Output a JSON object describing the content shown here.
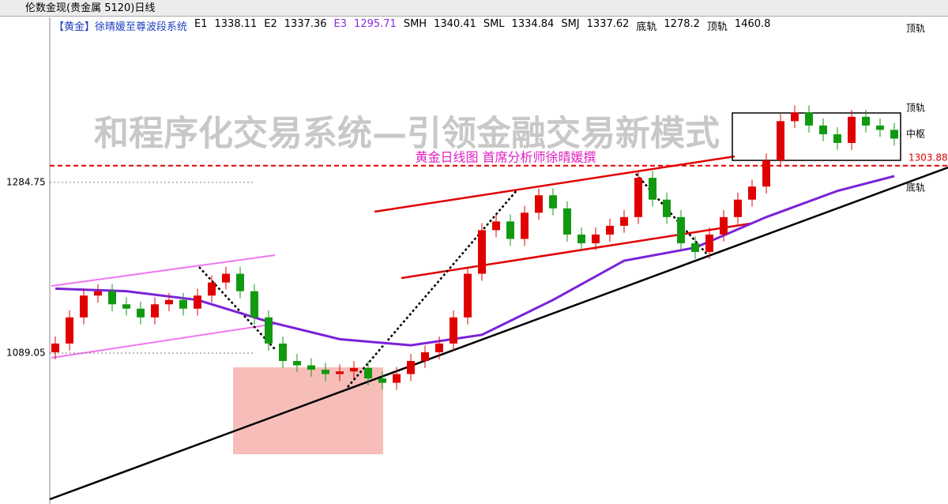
{
  "window_title": "伦数金现(贵金属 5120)日线",
  "chart_data": {
    "type": "candlestick",
    "title": "【黄金】徐晴媛至尊波段系统",
    "indicators": [
      {
        "name": "E1",
        "value": 1338.11,
        "color": "#000000"
      },
      {
        "name": "E2",
        "value": 1337.36,
        "color": "#000000"
      },
      {
        "name": "E3",
        "value": 1295.71,
        "color": "#8a2be2"
      },
      {
        "name": "SMH",
        "value": 1340.41,
        "color": "#000000"
      },
      {
        "name": "SML",
        "value": 1334.84,
        "color": "#000000"
      },
      {
        "name": "SMJ",
        "value": 1337.62,
        "color": "#000000"
      },
      {
        "name": "底轨",
        "value": 1278.2,
        "color": "#000000"
      },
      {
        "name": "顶轨",
        "value": 1460.8,
        "color": "#000000"
      }
    ],
    "watermark": "和程序化交易系统—引领金融交易新模式",
    "subtitle": "黄金日线图  首席分析师徐晴媛撰",
    "right_labels": [
      {
        "label": "顶轨",
        "value": 1460.8
      },
      {
        "label": "顶轨",
        "value": 1370
      },
      {
        "label": "中枢",
        "value": 1340
      },
      {
        "label": "底轨",
        "value": 1278.2
      }
    ],
    "reference_line": {
      "value": 1303.88,
      "color": "#e00000"
    },
    "ylim": [
      916,
      1474
    ],
    "yticks": [
      1089.05,
      1284.75
    ],
    "up_color": "#e00000",
    "down_color": "#119911",
    "open": [
      1090,
      1100,
      1130,
      1155,
      1160,
      1145,
      1140,
      1130,
      1145,
      1150,
      1140,
      1155,
      1170,
      1180,
      1160,
      1130,
      1100,
      1080,
      1075,
      1070,
      1065,
      1068,
      1072,
      1060,
      1055,
      1065,
      1080,
      1090,
      1100,
      1130,
      1180,
      1230,
      1240,
      1220,
      1250,
      1270,
      1255,
      1225,
      1215,
      1225,
      1235,
      1245,
      1290,
      1265,
      1245,
      1215,
      1205,
      1225,
      1245,
      1265,
      1280,
      1310,
      1355,
      1365,
      1350,
      1340,
      1330,
      1360,
      1350,
      1345
    ],
    "high": [
      1108,
      1138,
      1163,
      1168,
      1168,
      1153,
      1148,
      1153,
      1158,
      1158,
      1163,
      1178,
      1188,
      1188,
      1168,
      1138,
      1108,
      1088,
      1083,
      1078,
      1076,
      1080,
      1080,
      1068,
      1073,
      1088,
      1098,
      1108,
      1138,
      1188,
      1238,
      1248,
      1248,
      1258,
      1278,
      1278,
      1263,
      1233,
      1233,
      1243,
      1253,
      1298,
      1298,
      1273,
      1253,
      1223,
      1233,
      1253,
      1273,
      1288,
      1318,
      1363,
      1373,
      1373,
      1358,
      1348,
      1368,
      1368,
      1358,
      1353
    ],
    "low": [
      1082,
      1092,
      1122,
      1147,
      1137,
      1132,
      1122,
      1122,
      1137,
      1132,
      1132,
      1147,
      1162,
      1152,
      1122,
      1092,
      1072,
      1067,
      1062,
      1057,
      1057,
      1060,
      1052,
      1047,
      1047,
      1057,
      1072,
      1082,
      1092,
      1122,
      1172,
      1222,
      1212,
      1212,
      1242,
      1247,
      1217,
      1207,
      1207,
      1217,
      1227,
      1237,
      1257,
      1237,
      1207,
      1197,
      1197,
      1217,
      1237,
      1257,
      1272,
      1302,
      1347,
      1342,
      1332,
      1322,
      1322,
      1342,
      1337,
      1327
    ],
    "close": [
      1100,
      1130,
      1155,
      1160,
      1145,
      1140,
      1130,
      1145,
      1150,
      1140,
      1155,
      1170,
      1180,
      1160,
      1130,
      1100,
      1080,
      1075,
      1070,
      1065,
      1068,
      1072,
      1060,
      1055,
      1065,
      1080,
      1090,
      1100,
      1130,
      1180,
      1230,
      1240,
      1220,
      1250,
      1270,
      1255,
      1225,
      1215,
      1225,
      1235,
      1245,
      1290,
      1265,
      1245,
      1215,
      1205,
      1225,
      1245,
      1265,
      1280,
      1310,
      1355,
      1365,
      1350,
      1340,
      1330,
      1360,
      1350,
      1345,
      1335
    ],
    "moving_average": {
      "color": "#7b22d8",
      "x": [
        0,
        5,
        10,
        15,
        20,
        25,
        30,
        35,
        40,
        45,
        50,
        55,
        59
      ],
      "values": [
        1163,
        1160,
        1150,
        1125,
        1105,
        1098,
        1110,
        1150,
        1195,
        1210,
        1245,
        1275,
        1292
      ]
    }
  }
}
